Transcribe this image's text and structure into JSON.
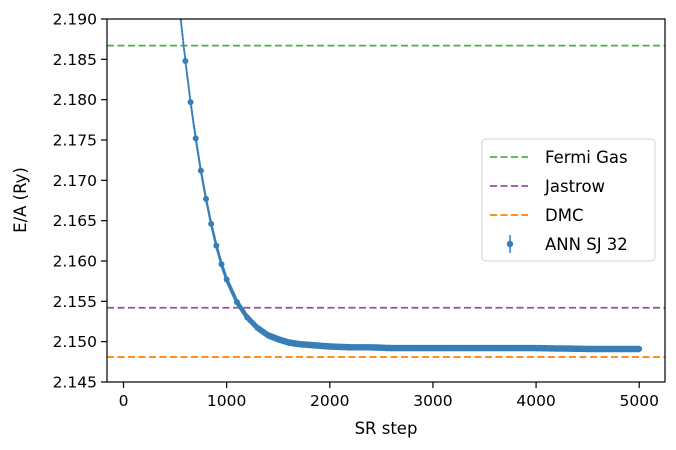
{
  "chart_data": {
    "type": "scatter",
    "title": "",
    "xlabel": "SR step",
    "ylabel": "E/A (Ry)",
    "xlim": [
      -160,
      5250
    ],
    "ylim": [
      2.145,
      2.19
    ],
    "xticks": [
      0,
      1000,
      2000,
      3000,
      4000,
      5000
    ],
    "xtick_labels": [
      "0",
      "1000",
      "2000",
      "3000",
      "4000",
      "5000"
    ],
    "yticks": [
      2.145,
      2.15,
      2.155,
      2.16,
      2.165,
      2.17,
      2.175,
      2.18,
      2.185,
      2.19
    ],
    "ytick_labels": [
      "2.145",
      "2.150",
      "2.155",
      "2.160",
      "2.165",
      "2.170",
      "2.175",
      "2.180",
      "2.185",
      "2.190"
    ],
    "grid": false,
    "legend_position": "center-right",
    "reference_lines": [
      {
        "name": "Fermi Gas",
        "y": 2.1867,
        "color": "#4daf4a",
        "style": "dashed"
      },
      {
        "name": "Jastrow",
        "y": 2.1542,
        "color": "#984ea3",
        "style": "dashed"
      },
      {
        "name": "DMC",
        "y": 2.1481,
        "color": "#ff7f00",
        "style": "dashed"
      }
    ],
    "series": [
      {
        "name": "ANN SJ 32",
        "color": "#377eb8",
        "marker": "point-with-errorbar",
        "x": [
          550,
          600,
          650,
          700,
          750,
          800,
          850,
          900,
          950,
          1000,
          1100,
          1200,
          1300,
          1400,
          1500,
          1600,
          1700,
          1800,
          1900,
          2000,
          2200,
          2400,
          2600,
          2800,
          3000,
          3500,
          4000,
          4500,
          5000
        ],
        "y": [
          2.1905,
          2.1848,
          2.1797,
          2.1752,
          2.1712,
          2.1677,
          2.1646,
          2.1619,
          2.1596,
          2.1577,
          2.1549,
          2.153,
          2.1517,
          2.1508,
          2.1503,
          2.1499,
          2.1497,
          2.1496,
          2.1495,
          2.1494,
          2.1493,
          2.1493,
          2.1492,
          2.1492,
          2.1492,
          2.1492,
          2.1492,
          2.1491,
          2.1491
        ],
        "yerr": 0.0004
      }
    ]
  }
}
